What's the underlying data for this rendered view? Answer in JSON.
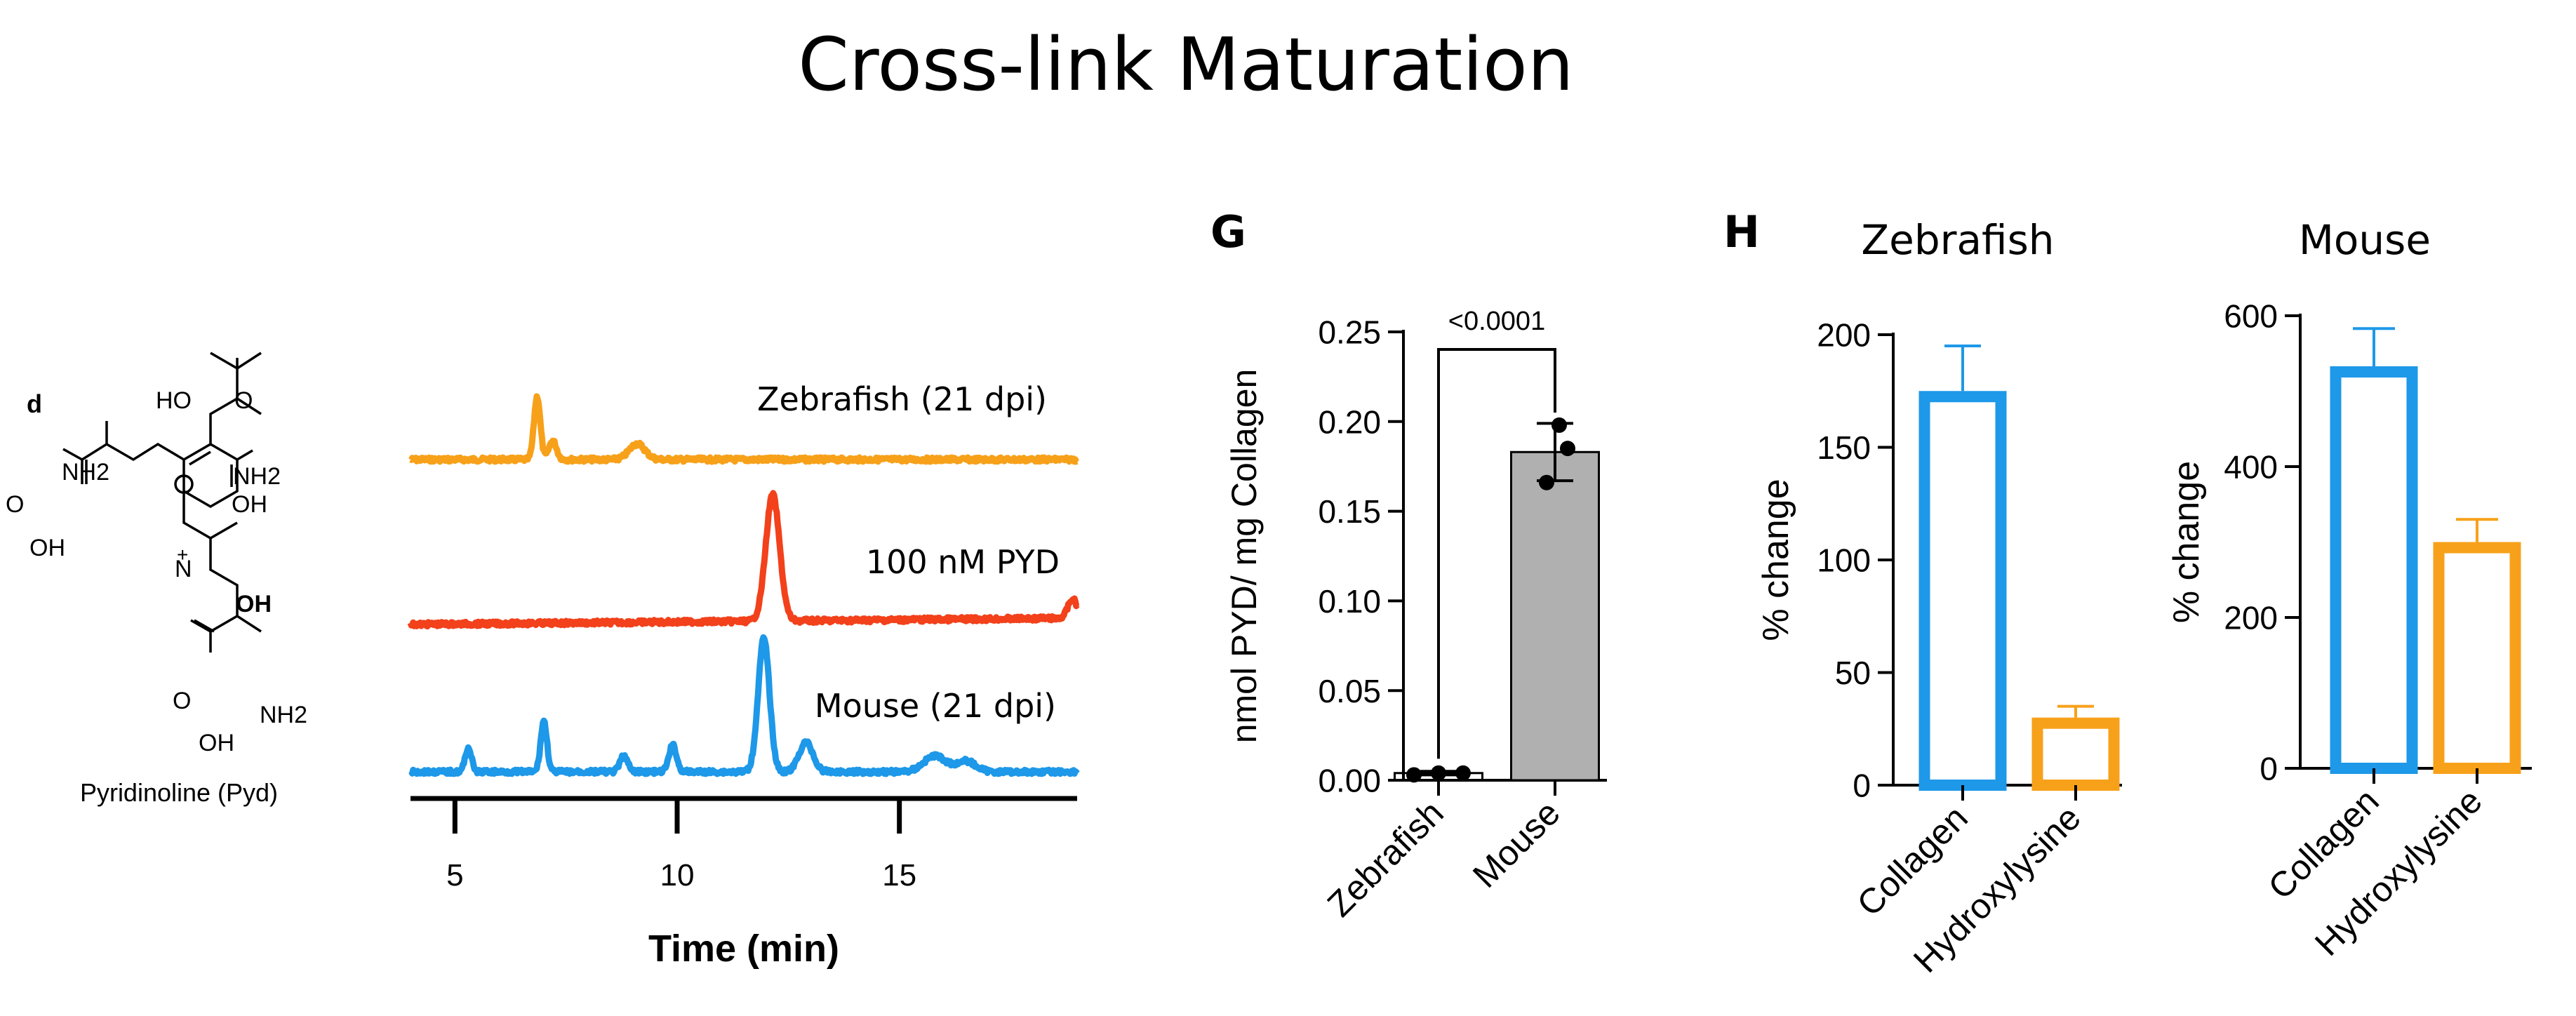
{
  "page": {
    "title": "Cross-link Maturation"
  },
  "structure": {
    "panel_letter": "d",
    "caption": "Pyridinoline (Pyd)",
    "atom_labels": [
      "HO",
      "O",
      "NH2",
      "NH2",
      "O",
      "OH",
      "OH",
      "N",
      "OH",
      "O",
      "NH2",
      "OH"
    ],
    "charge": "+"
  },
  "chromatogram": {
    "traces": [
      {
        "label": "Zebrafish (21 dpi)",
        "color": "#f7a11a",
        "baseline": 0.0,
        "peaks": [
          [
            6.85,
            1.0,
            0.1
          ],
          [
            7.2,
            0.3,
            0.12
          ],
          [
            9.1,
            0.25,
            0.25
          ]
        ]
      },
      {
        "label": "100 nM PYD",
        "color": "#f2411b",
        "baseline": 0.0,
        "peaks": [
          [
            12.15,
            1.0,
            0.22
          ],
          [
            18.9,
            0.15,
            0.15
          ]
        ]
      },
      {
        "label": "Mouse  (21 dpi)",
        "color": "#1e98e8",
        "baseline": 0.0,
        "peaks": [
          [
            5.3,
            0.18,
            0.1
          ],
          [
            7.0,
            0.38,
            0.1
          ],
          [
            8.8,
            0.12,
            0.12
          ],
          [
            9.9,
            0.2,
            0.12
          ],
          [
            11.95,
            1.0,
            0.18
          ],
          [
            12.9,
            0.22,
            0.22
          ],
          [
            15.8,
            0.12,
            0.35
          ],
          [
            16.5,
            0.08,
            0.3
          ]
        ]
      }
    ],
    "x_ticks": [
      5,
      10,
      15
    ],
    "x_range": [
      4,
      19
    ],
    "xlabel": "Time (min)"
  },
  "chart_data": [
    {
      "type": "bar",
      "panel": "G",
      "categories": [
        "Zebrafish",
        "Mouse"
      ],
      "values": [
        0.004,
        0.183
      ],
      "errors": [
        0.001,
        0.016
      ],
      "points": [
        [
          0.003,
          0.004,
          0.004
        ],
        [
          0.198,
          0.185,
          0.166
        ]
      ],
      "ylabel": "nmol PYD/ mg Collagen",
      "yticks": [
        "0.00",
        "0.05",
        "0.10",
        "0.15",
        "0.20",
        "0.25"
      ],
      "ylim": [
        0,
        0.25
      ],
      "significance": "<0.0001",
      "colors": [
        "#ffffff",
        "#b0b0b0"
      ]
    },
    {
      "type": "bar",
      "panel": "H",
      "title": "Zebrafish",
      "categories": [
        "Collagen",
        "Hydroxylysine"
      ],
      "values": [
        175,
        30
      ],
      "errors": [
        20,
        5
      ],
      "ylabel": "% change",
      "yticks": [
        "0",
        "50",
        "100",
        "150",
        "200"
      ],
      "ylim": [
        0,
        200
      ],
      "colors": [
        "#1e98e8",
        "#f7a11a"
      ]
    },
    {
      "type": "bar",
      "panel": "",
      "title": "Mouse",
      "categories": [
        "Collagen",
        "Hydroxylysine"
      ],
      "values": [
        533,
        300
      ],
      "errors": [
        50,
        30
      ],
      "ylabel": "% change",
      "yticks": [
        "0",
        "200",
        "400",
        "600"
      ],
      "ylim": [
        0,
        600
      ],
      "colors": [
        "#1e98e8",
        "#f7a11a"
      ]
    }
  ]
}
